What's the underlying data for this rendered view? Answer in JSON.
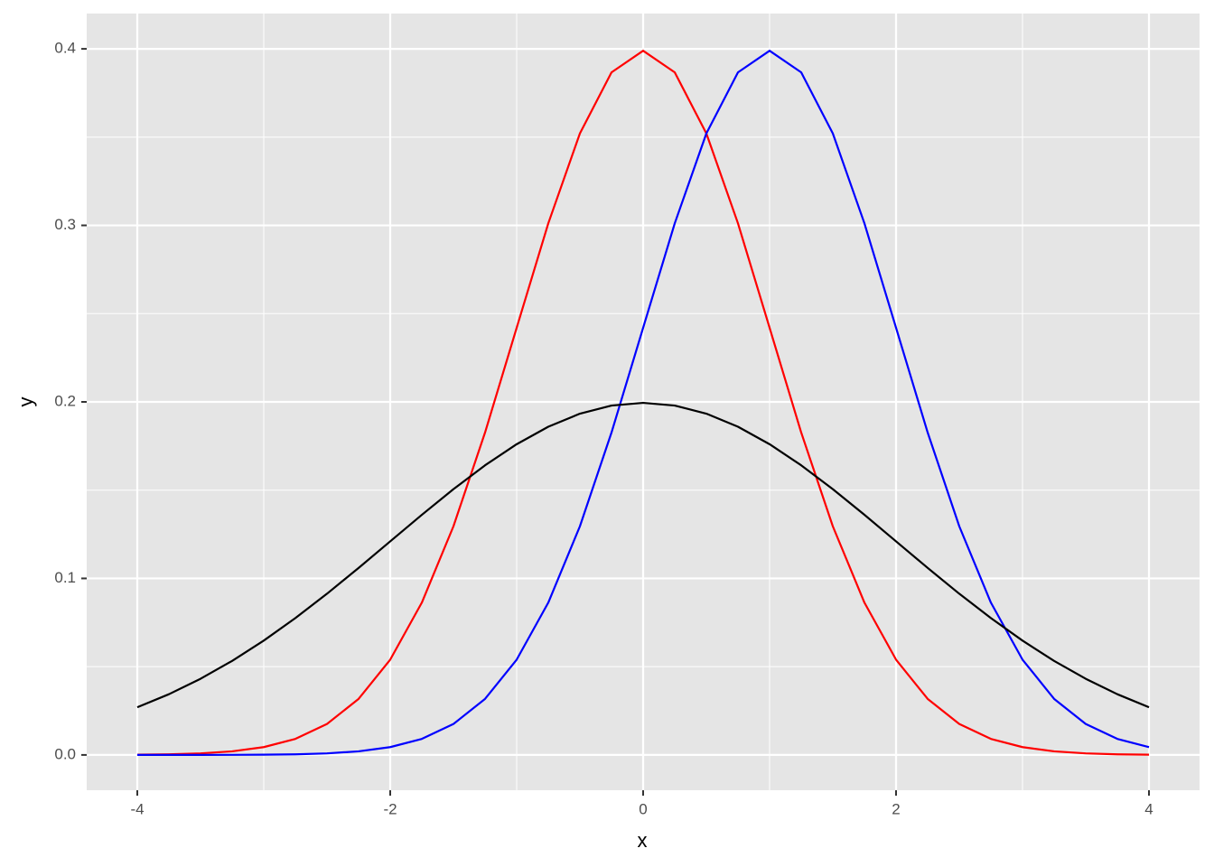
{
  "chart_data": {
    "type": "line",
    "x_label": "x",
    "y_label": "y",
    "x": [
      -4,
      -3.75,
      -3.5,
      -3.25,
      -3,
      -2.75,
      -2.5,
      -2.25,
      -2,
      -1.75,
      -1.5,
      -1.25,
      -1,
      -0.75,
      -0.5,
      -0.25,
      0,
      0.25,
      0.5,
      0.75,
      1,
      1.25,
      1.5,
      1.75,
      2,
      2.25,
      2.5,
      2.75,
      3,
      3.25,
      3.5,
      3.75,
      4
    ],
    "series": [
      {
        "color": "#ff0000",
        "values": [
          0.00013,
          0.00035,
          0.00087,
          0.00203,
          0.00443,
          0.00909,
          0.01753,
          0.03174,
          0.05399,
          0.08628,
          0.12952,
          0.18265,
          0.24197,
          0.30114,
          0.35207,
          0.38667,
          0.39894,
          0.38667,
          0.35207,
          0.30114,
          0.24197,
          0.18265,
          0.12952,
          0.08628,
          0.05399,
          0.03174,
          0.01753,
          0.00909,
          0.00443,
          0.00203,
          0.00087,
          0.00035,
          0.00013
        ]
      },
      {
        "color": "#0000ff",
        "values": [
          1.5e-06,
          5e-06,
          1.6e-05,
          5e-05,
          0.00013,
          0.00035,
          0.00087,
          0.00203,
          0.00443,
          0.00909,
          0.01753,
          0.03174,
          0.05399,
          0.08628,
          0.12952,
          0.18265,
          0.24197,
          0.30114,
          0.35207,
          0.38667,
          0.39894,
          0.38667,
          0.35207,
          0.30114,
          0.24197,
          0.18265,
          0.12952,
          0.08628,
          0.05399,
          0.03174,
          0.01753,
          0.00909,
          0.00443
        ]
      },
      {
        "color": "#000000",
        "values": [
          0.027,
          0.03439,
          0.04314,
          0.05327,
          0.06476,
          0.07751,
          0.09132,
          0.10594,
          0.12099,
          0.13603,
          0.15057,
          0.16408,
          0.17603,
          0.18592,
          0.19333,
          0.19792,
          0.19947,
          0.19792,
          0.19333,
          0.18592,
          0.17603,
          0.16408,
          0.15057,
          0.13603,
          0.12099,
          0.10594,
          0.09132,
          0.07751,
          0.06476,
          0.05327,
          0.04314,
          0.03439,
          0.027
        ]
      }
    ],
    "xlim": [
      -4.4,
      4.4
    ],
    "xticks": [
      -4,
      -2,
      0,
      2,
      4
    ],
    "xminor": [
      -3,
      -1,
      1,
      3
    ],
    "ylim": [
      -0.02,
      0.42
    ],
    "yticks": [
      {
        "value": 0,
        "label": "0.0"
      },
      0.1,
      0.2,
      0.3,
      0.4
    ],
    "yminor": [
      0.05,
      0.15,
      0.25,
      0.35
    ],
    "grid": true
  }
}
